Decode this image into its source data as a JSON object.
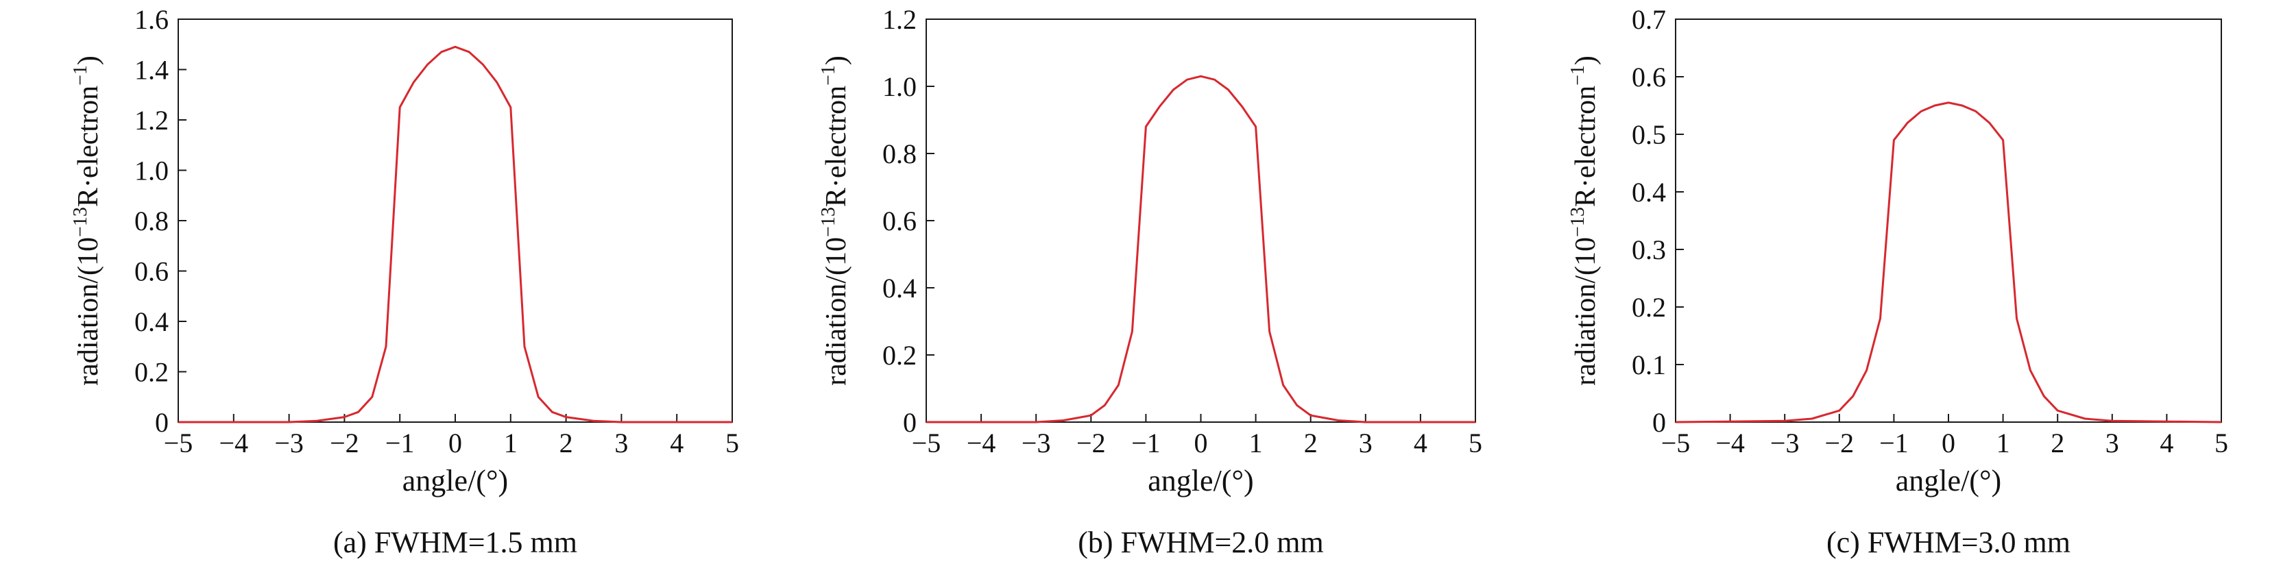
{
  "chart_data": [
    {
      "type": "line",
      "caption": "(a) FWHM=1.5 mm",
      "xlabel": "angle/(°)",
      "ylabel_main": "radiation/(10",
      "ylabel_sup": "−13",
      "ylabel_mid": "R·electron",
      "ylabel_sup2": "−1",
      "ylabel_end": ")",
      "xlim": [
        -5,
        5
      ],
      "ylim": [
        0,
        1.6
      ],
      "xticks": [
        -5,
        -4,
        -3,
        -2,
        -1,
        0,
        1,
        2,
        3,
        4,
        5
      ],
      "xtick_labels": [
        "−5",
        "−4",
        "−3",
        "−2",
        "−1",
        "0",
        "1",
        "2",
        "3",
        "4",
        "5"
      ],
      "yticks": [
        0,
        0.2,
        0.4,
        0.6,
        0.8,
        1.0,
        1.2,
        1.4,
        1.6
      ],
      "ytick_labels": [
        "0",
        "0.2",
        "0.4",
        "0.6",
        "0.8",
        "1.0",
        "1.2",
        "1.4",
        "1.6"
      ],
      "color": "#d7282f",
      "series": [
        {
          "x": [
            -5,
            -3,
            -2.5,
            -2,
            -1.75,
            -1.5,
            -1.25,
            -1,
            -0.75,
            -0.5,
            -0.25,
            0,
            0.25,
            0.5,
            0.75,
            1,
            1.25,
            1.5,
            1.75,
            2,
            2.5,
            3,
            5
          ],
          "y": [
            0,
            0,
            0.005,
            0.02,
            0.04,
            0.1,
            0.3,
            1.25,
            1.35,
            1.42,
            1.47,
            1.49,
            1.47,
            1.42,
            1.35,
            1.25,
            0.3,
            0.1,
            0.04,
            0.02,
            0.005,
            0,
            0
          ]
        }
      ]
    },
    {
      "type": "line",
      "caption": "(b) FWHM=2.0 mm",
      "xlabel": "angle/(°)",
      "ylabel_main": "radiation/(10",
      "ylabel_sup": "−13",
      "ylabel_mid": "R·electron",
      "ylabel_sup2": "−1",
      "ylabel_end": ")",
      "xlim": [
        -5,
        5
      ],
      "ylim": [
        0,
        1.2
      ],
      "xticks": [
        -5,
        -4,
        -3,
        -2,
        -1,
        0,
        1,
        2,
        3,
        4,
        5
      ],
      "xtick_labels": [
        "−5",
        "−4",
        "−3",
        "−2",
        "−1",
        "0",
        "1",
        "2",
        "3",
        "4",
        "5"
      ],
      "yticks": [
        0,
        0.2,
        0.4,
        0.6,
        0.8,
        1.0,
        1.2
      ],
      "ytick_labels": [
        "0",
        "0.2",
        "0.4",
        "0.6",
        "0.8",
        "1.0",
        "1.2"
      ],
      "color": "#d7282f",
      "series": [
        {
          "x": [
            -5,
            -3,
            -2.5,
            -2,
            -1.75,
            -1.5,
            -1.25,
            -1,
            -0.75,
            -0.5,
            -0.25,
            0,
            0.25,
            0.5,
            0.75,
            1,
            1.25,
            1.5,
            1.75,
            2,
            2.5,
            3,
            5
          ],
          "y": [
            0,
            0,
            0.005,
            0.02,
            0.05,
            0.11,
            0.27,
            0.88,
            0.94,
            0.99,
            1.02,
            1.03,
            1.02,
            0.99,
            0.94,
            0.88,
            0.27,
            0.11,
            0.05,
            0.02,
            0.005,
            0,
            0
          ]
        }
      ]
    },
    {
      "type": "line",
      "caption": "(c) FWHM=3.0 mm",
      "xlabel": "angle/(°)",
      "ylabel_main": "radiation/(10",
      "ylabel_sup": "−13",
      "ylabel_mid": "R·electron",
      "ylabel_sup2": "−1",
      "ylabel_end": ")",
      "xlim": [
        -5,
        5
      ],
      "ylim": [
        0,
        0.7
      ],
      "xticks": [
        -5,
        -4,
        -3,
        -2,
        -1,
        0,
        1,
        2,
        3,
        4,
        5
      ],
      "xtick_labels": [
        "−5",
        "−4",
        "−3",
        "−2",
        "−1",
        "0",
        "1",
        "2",
        "3",
        "4",
        "5"
      ],
      "yticks": [
        0,
        0.1,
        0.2,
        0.3,
        0.4,
        0.5,
        0.6,
        0.7
      ],
      "ytick_labels": [
        "0",
        "0.1",
        "0.2",
        "0.3",
        "0.4",
        "0.5",
        "0.6",
        "0.7"
      ],
      "color": "#d7282f",
      "series": [
        {
          "x": [
            -5,
            -3,
            -2.5,
            -2,
            -1.75,
            -1.5,
            -1.25,
            -1,
            -0.75,
            -0.5,
            -0.25,
            0,
            0.25,
            0.5,
            0.75,
            1,
            1.25,
            1.5,
            1.75,
            2,
            2.5,
            3,
            5
          ],
          "y": [
            0,
            0.002,
            0.006,
            0.02,
            0.045,
            0.09,
            0.18,
            0.49,
            0.52,
            0.54,
            0.55,
            0.555,
            0.55,
            0.54,
            0.52,
            0.49,
            0.18,
            0.09,
            0.045,
            0.02,
            0.006,
            0.002,
            0
          ]
        }
      ]
    }
  ]
}
